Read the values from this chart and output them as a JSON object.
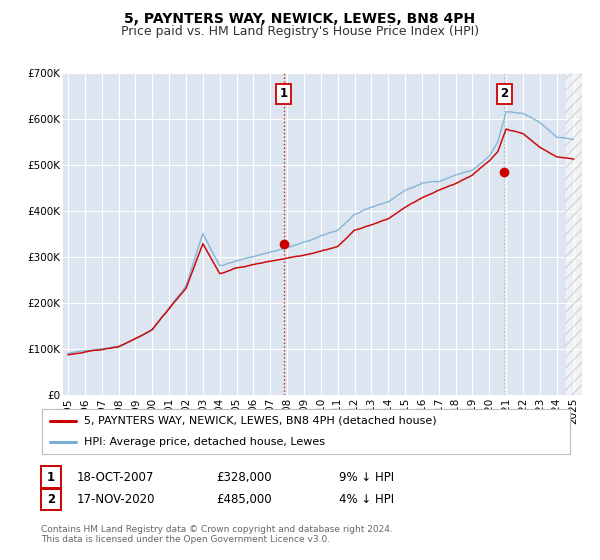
{
  "title": "5, PAYNTERS WAY, NEWICK, LEWES, BN8 4PH",
  "subtitle": "Price paid vs. HM Land Registry's House Price Index (HPI)",
  "ylim": [
    0,
    700000
  ],
  "xlim_start": 1994.7,
  "xlim_end": 2025.5,
  "hatch_start": 2024.5,
  "yticks": [
    0,
    100000,
    200000,
    300000,
    400000,
    500000,
    600000,
    700000
  ],
  "ytick_labels": [
    "£0",
    "£100K",
    "£200K",
    "£300K",
    "£400K",
    "£500K",
    "£600K",
    "£700K"
  ],
  "xticks": [
    1995,
    1996,
    1997,
    1998,
    1999,
    2000,
    2001,
    2002,
    2003,
    2004,
    2005,
    2006,
    2007,
    2008,
    2009,
    2010,
    2011,
    2012,
    2013,
    2014,
    2015,
    2016,
    2017,
    2018,
    2019,
    2020,
    2021,
    2022,
    2023,
    2024,
    2025
  ],
  "bg_color": "#dde6f0",
  "outer_bg": "#ffffff",
  "grid_color": "#ffffff",
  "sale1_x": 2007.8,
  "sale1_y": 328000,
  "sale1_label": "1",
  "sale1_date": "18-OCT-2007",
  "sale1_price": "£328,000",
  "sale1_hpi": "9% ↓ HPI",
  "sale2_x": 2020.88,
  "sale2_y": 485000,
  "sale2_label": "2",
  "sale2_date": "17-NOV-2020",
  "sale2_price": "£485,000",
  "sale2_hpi": "4% ↓ HPI",
  "red_line_color": "#cc0000",
  "blue_line_color": "#7aafd4",
  "vline1_color": "#cc0000",
  "vline2_color": "#aaaaaa",
  "legend_label1": "5, PAYNTERS WAY, NEWICK, LEWES, BN8 4PH (detached house)",
  "legend_label2": "HPI: Average price, detached house, Lewes",
  "footer1": "Contains HM Land Registry data © Crown copyright and database right 2024.",
  "footer2": "This data is licensed under the Open Government Licence v3.0.",
  "title_fontsize": 10,
  "subtitle_fontsize": 9,
  "tick_fontsize": 7.5,
  "legend_fontsize": 8,
  "annot_fontsize": 8.5,
  "footer_fontsize": 6.5
}
